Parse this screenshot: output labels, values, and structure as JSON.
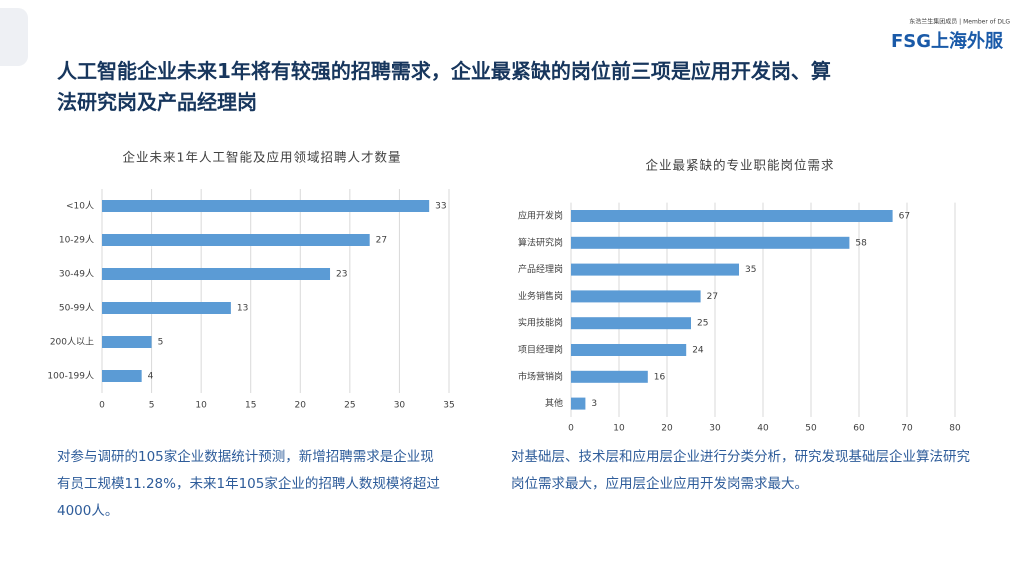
{
  "header": {
    "title": "人工智能企业未来1年将有较强的招聘需求，企业最紧缺的岗位前三项是应用开发岗、算法研究岗及产品经理岗",
    "group_member": "东浩兰生集团成员 | Member of DLG",
    "logo": "FSG上海外服"
  },
  "captions": [
    "对参与调研的105家企业数据统计预测，新增招聘需求是企业现有员工规模11.28%，未来1年105家企业的招聘人数规模将超过4000人。",
    "对基础层、技术层和应用层企业进行分类分析，研究发现基础层企业算法研究岗位需求最大，应用层企业应用开发岗需求最大。"
  ],
  "chart_data": [
    {
      "type": "hbar",
      "title": "企业未来1年人工智能及应用领域招聘人才数量",
      "categories": [
        "<10人",
        "10-29人",
        "30-49人",
        "50-99人",
        "200人以上",
        "100-199人"
      ],
      "values": [
        33,
        27,
        23,
        13,
        5,
        4
      ],
      "color": "#5b9bd5",
      "xlim": [
        0,
        35
      ],
      "xticks": [
        0,
        5,
        10,
        15,
        20,
        25,
        30,
        35
      ],
      "grid": true
    },
    {
      "type": "hbar",
      "title": "企业最紧缺的专业职能岗位需求",
      "categories": [
        "应用开发岗",
        "算法研究岗",
        "产品经理岗",
        "业务销售岗",
        "实用技能岗",
        "项目经理岗",
        "市场营销岗",
        "其他"
      ],
      "values": [
        67,
        58,
        35,
        27,
        25,
        24,
        16,
        3
      ],
      "color": "#5b9bd5",
      "xlim": [
        0,
        80
      ],
      "xticks": [
        0,
        10,
        20,
        30,
        40,
        50,
        60,
        70,
        80
      ],
      "grid": true
    }
  ]
}
